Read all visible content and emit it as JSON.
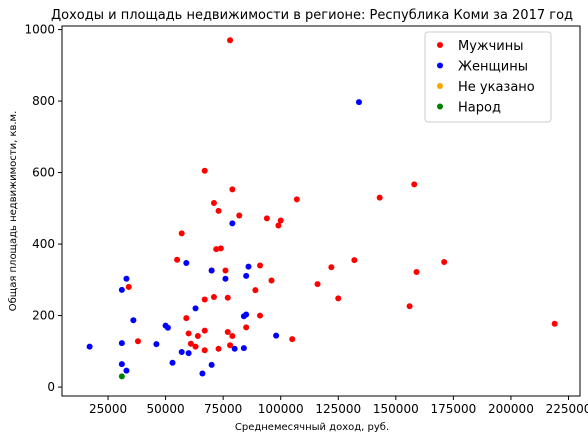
{
  "chart_data": {
    "type": "scatter",
    "title": "Доходы и площадь недвижимости в регионе: Республика Коми за 2017 год",
    "xlabel": "Среднемесячный доход, руб.",
    "ylabel": "Общая площадь недвижимости, кв.м.",
    "xlim": [
      5000,
      230000
    ],
    "ylim": [
      -25,
      1010
    ],
    "xticks": [
      25000,
      50000,
      75000,
      100000,
      125000,
      150000,
      175000,
      200000,
      225000
    ],
    "xtick_labels": [
      "25000",
      "50000",
      "75000",
      "100000",
      "125000",
      "150000",
      "175000",
      "200000",
      "225000"
    ],
    "yticks": [
      0,
      200,
      400,
      600,
      800,
      1000
    ],
    "ytick_labels": [
      "0",
      "200",
      "400",
      "600",
      "800",
      "1000"
    ],
    "grid": false,
    "legend_position": "top-right",
    "series": [
      {
        "name": "Мужчины",
        "color": "#ff0000",
        "points": [
          [
            78000,
            970
          ],
          [
            67000,
            605
          ],
          [
            79000,
            553
          ],
          [
            107000,
            525
          ],
          [
            143000,
            530
          ],
          [
            158000,
            567
          ],
          [
            71000,
            515
          ],
          [
            73000,
            493
          ],
          [
            82000,
            480
          ],
          [
            94000,
            472
          ],
          [
            100000,
            466
          ],
          [
            99000,
            452
          ],
          [
            57000,
            430
          ],
          [
            74000,
            388
          ],
          [
            72000,
            386
          ],
          [
            55000,
            356
          ],
          [
            132000,
            355
          ],
          [
            171000,
            350
          ],
          [
            122000,
            335
          ],
          [
            159000,
            322
          ],
          [
            76000,
            326
          ],
          [
            91000,
            340
          ],
          [
            70000,
            326
          ],
          [
            96000,
            298
          ],
          [
            116000,
            288
          ],
          [
            34000,
            280
          ],
          [
            89000,
            271
          ],
          [
            71000,
            252
          ],
          [
            77000,
            250
          ],
          [
            67000,
            245
          ],
          [
            125000,
            248
          ],
          [
            156000,
            226
          ],
          [
            91000,
            200
          ],
          [
            59000,
            193
          ],
          [
            219000,
            177
          ],
          [
            85000,
            167
          ],
          [
            67000,
            158
          ],
          [
            77000,
            154
          ],
          [
            60000,
            150
          ],
          [
            79000,
            143
          ],
          [
            64000,
            143
          ],
          [
            105000,
            134
          ],
          [
            38000,
            128
          ],
          [
            61000,
            121
          ],
          [
            63000,
            113
          ],
          [
            73000,
            107
          ],
          [
            67000,
            103
          ],
          [
            78000,
            117
          ]
        ]
      },
      {
        "name": "Женщины",
        "color": "#0000ff",
        "points": [
          [
            134000,
            797
          ],
          [
            79000,
            458
          ],
          [
            59000,
            347
          ],
          [
            86000,
            337
          ],
          [
            70000,
            326
          ],
          [
            85000,
            311
          ],
          [
            76000,
            303
          ],
          [
            33000,
            303
          ],
          [
            31000,
            272
          ],
          [
            63000,
            220
          ],
          [
            85000,
            203
          ],
          [
            84000,
            198
          ],
          [
            36000,
            187
          ],
          [
            50000,
            172
          ],
          [
            51000,
            166
          ],
          [
            98000,
            144
          ],
          [
            17000,
            113
          ],
          [
            31000,
            123
          ],
          [
            46000,
            120
          ],
          [
            84000,
            109
          ],
          [
            80000,
            107
          ],
          [
            57000,
            98
          ],
          [
            60000,
            95
          ],
          [
            53000,
            68
          ],
          [
            31000,
            64
          ],
          [
            70000,
            62
          ],
          [
            33000,
            46
          ],
          [
            66000,
            38
          ]
        ]
      },
      {
        "name": "Не указано",
        "color": "#ffa500",
        "points": []
      },
      {
        "name": "Народ",
        "color": "#008000",
        "points": [
          [
            31000,
            30
          ]
        ]
      }
    ]
  }
}
